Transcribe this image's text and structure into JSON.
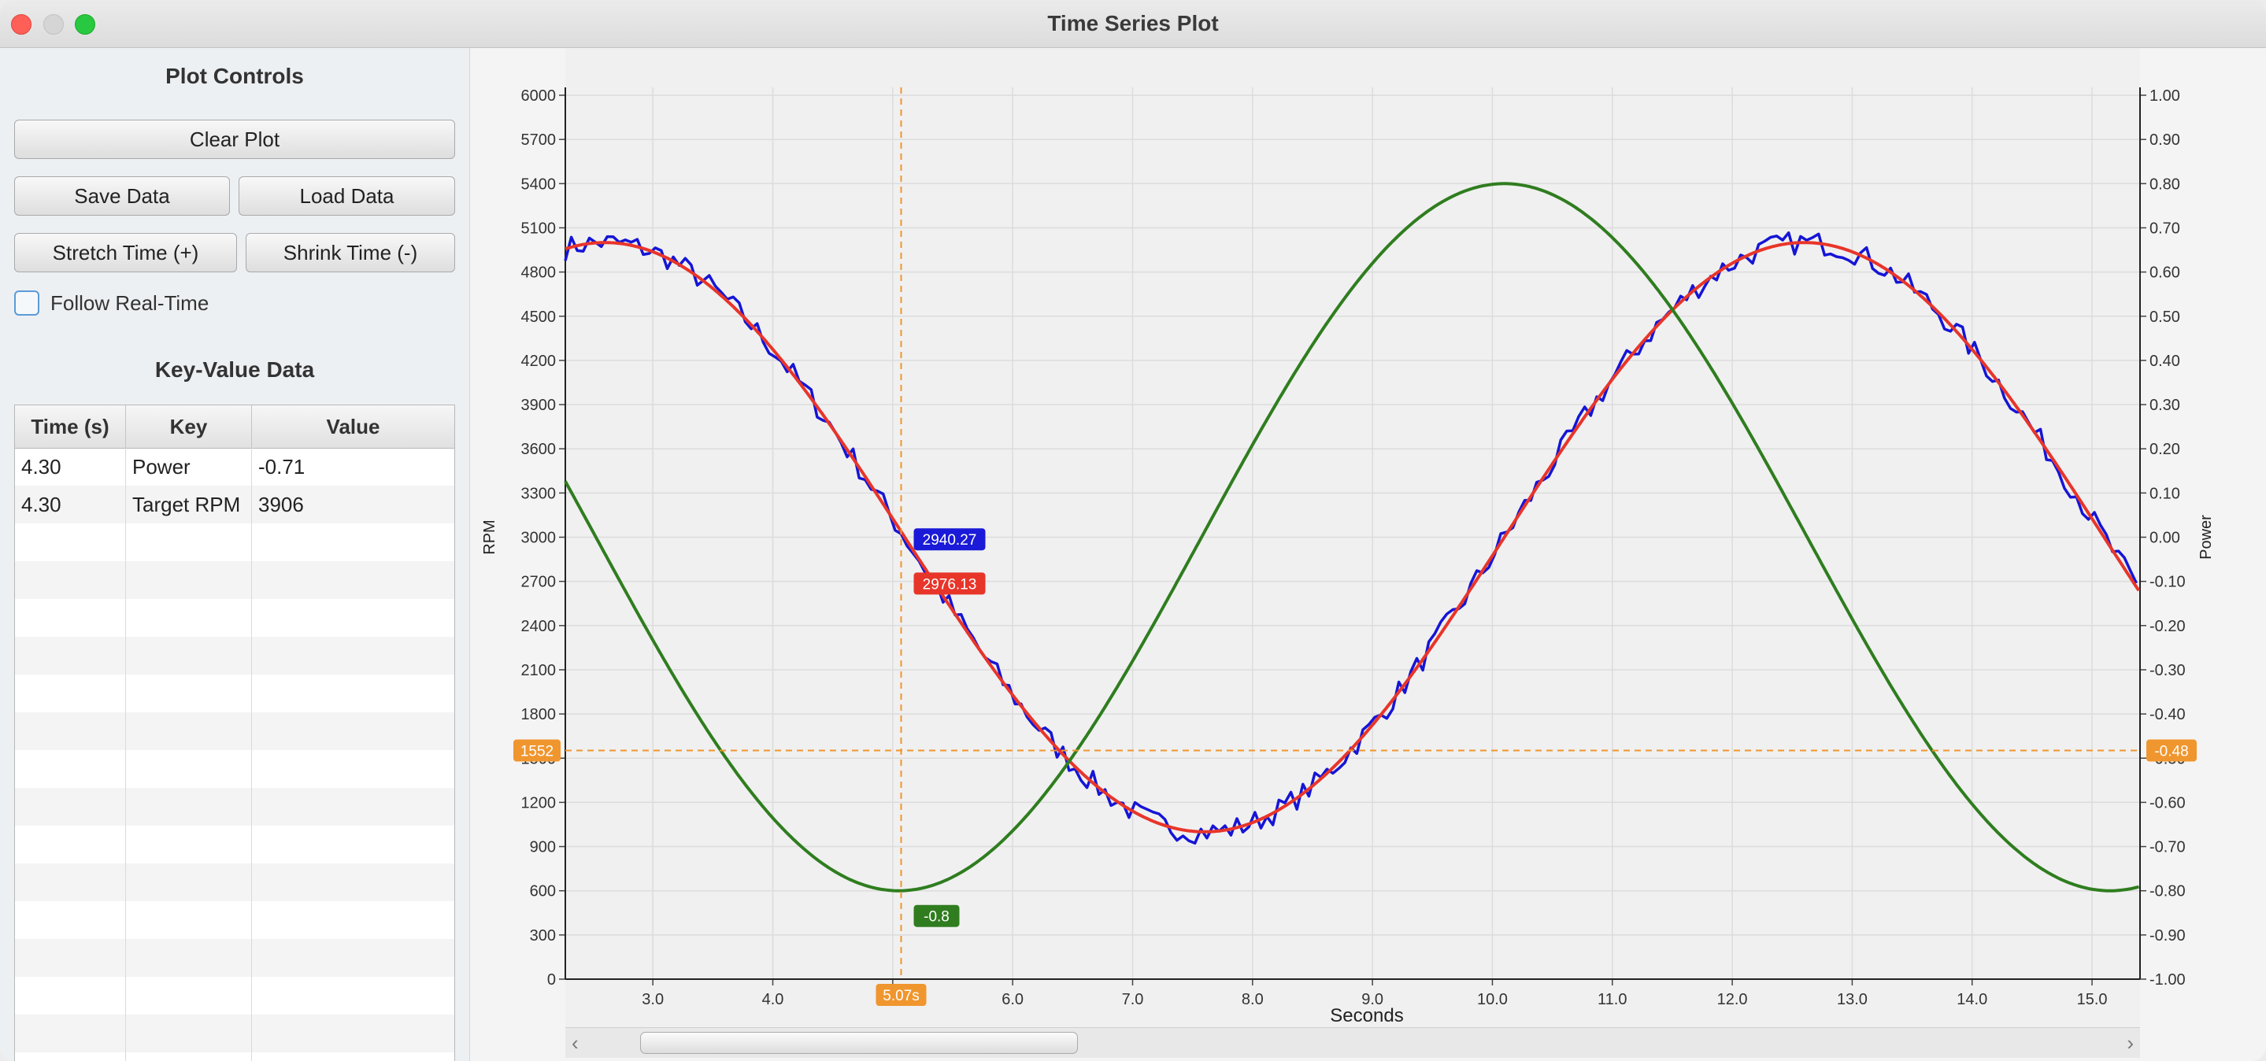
{
  "window": {
    "title": "Time Series Plot"
  },
  "sidebar": {
    "controls_title": "Plot Controls",
    "buttons": {
      "clear_plot": "Clear Plot",
      "save_data": "Save Data",
      "load_data": "Load Data",
      "stretch_time": "Stretch Time (+)",
      "shrink_time": "Shrink Time (-)"
    },
    "follow_realtime": {
      "label": "Follow Real-Time",
      "checked": false
    },
    "kv_title": "Key-Value Data",
    "table": {
      "columns": [
        "Time (s)",
        "Key",
        "Value"
      ],
      "rows": [
        [
          "4.30",
          "Power",
          "-0.71"
        ],
        [
          "4.30",
          "Target RPM",
          "3906"
        ]
      ]
    }
  },
  "chart_data": {
    "type": "line",
    "xlabel": "Seconds",
    "ylabel": "RPM",
    "y2label": "Power",
    "xlim": [
      2.27,
      15.4
    ],
    "ylim": [
      0,
      6000
    ],
    "y2lim": [
      -1.0,
      1.0
    ],
    "x_ticks": [
      "3.0",
      "4.0",
      "5.0",
      "6.0",
      "7.0",
      "8.0",
      "9.0",
      "10.0",
      "11.0",
      "12.0",
      "13.0",
      "14.0",
      "15.0"
    ],
    "y_ticks": [
      "0",
      "300",
      "600",
      "900",
      "1200",
      "1500",
      "1800",
      "2100",
      "2400",
      "2700",
      "3000",
      "3300",
      "3600",
      "3900",
      "4200",
      "4500",
      "4800",
      "5100",
      "5400",
      "5700",
      "6000"
    ],
    "y2_ticks": [
      "-1.00",
      "-0.90",
      "-0.80",
      "-0.70",
      "-0.60",
      "-0.50",
      "-0.40",
      "-0.30",
      "-0.20",
      "-0.10",
      "0.00",
      "0.10",
      "0.20",
      "0.30",
      "0.40",
      "0.50",
      "0.60",
      "0.70",
      "0.80",
      "0.90",
      "1.00"
    ],
    "grid": true,
    "series": [
      {
        "key": "rpm_actual",
        "axis": "left",
        "color": "#1515d6",
        "model": "sine",
        "mean": 3000,
        "amplitude": 2000,
        "period": 10,
        "peak_x": 2.6,
        "noise": 80
      },
      {
        "key": "rpm_target",
        "axis": "left",
        "color": "#e8352a",
        "model": "sine",
        "mean": 3000,
        "amplitude": 2000,
        "period": 10,
        "peak_x": 2.6
      },
      {
        "key": "power",
        "axis": "right",
        "color": "#2f7d1f",
        "model": "sine",
        "mean": 0,
        "amplitude": 0.8,
        "period": 10.1,
        "peak_x": 10.1
      }
    ],
    "crosshair": {
      "x": 5.07,
      "y": 1552,
      "x_label": "5.07s",
      "y_left_label": "1552",
      "y_right_label": "-0.48",
      "color": "#f0962e"
    },
    "point_labels": [
      {
        "series": "rpm_actual",
        "x": 5.07,
        "y": 2900,
        "text": "2940.27",
        "color": "#1a1ad8"
      },
      {
        "series": "rpm_target",
        "x": 5.07,
        "y": 2600,
        "text": "2976.13",
        "color": "#e8352a"
      },
      {
        "series": "power",
        "x": 5.07,
        "y2": -0.8,
        "text": "-0.8",
        "color": "#2f7d1f"
      }
    ]
  }
}
